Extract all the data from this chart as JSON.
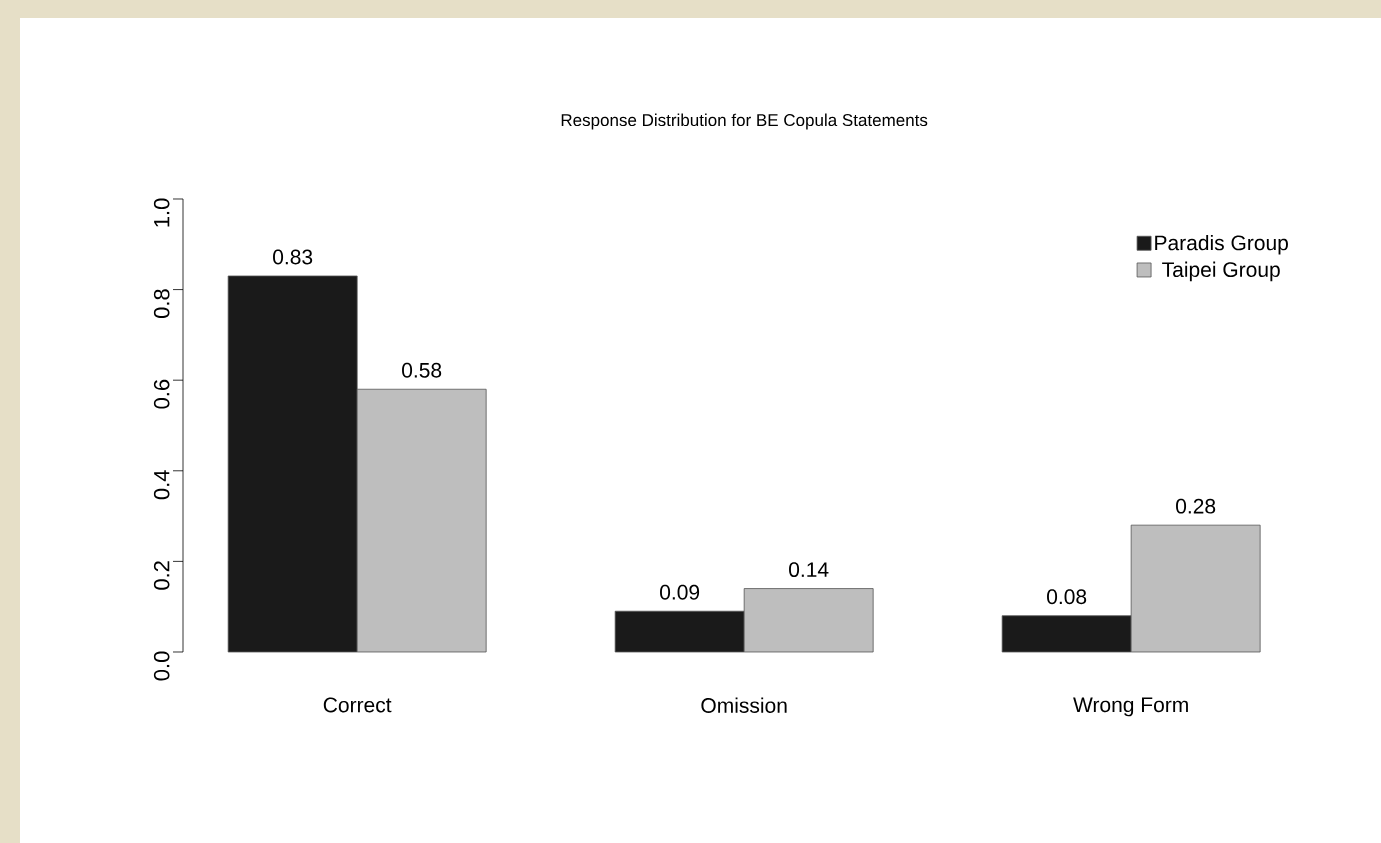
{
  "chart_data": {
    "type": "bar",
    "title": "Response Distribution for BE Copula Statements",
    "categories": [
      "Correct",
      "Omission",
      "Wrong Form"
    ],
    "series": [
      {
        "name": "Paradis Group",
        "color": "#1a1a1a",
        "values": [
          0.83,
          0.09,
          0.08
        ]
      },
      {
        "name": "Taipei Group",
        "color": "#bebebe",
        "values": [
          0.58,
          0.14,
          0.28
        ]
      }
    ],
    "ylim": [
      0,
      1
    ],
    "yticks": [
      {
        "value": 0,
        "label": "0.0"
      },
      0.2,
      0.4,
      0.6,
      0.8,
      {
        "value": 1,
        "label": "1.0"
      }
    ],
    "data_labels": true,
    "legend": "top right"
  }
}
